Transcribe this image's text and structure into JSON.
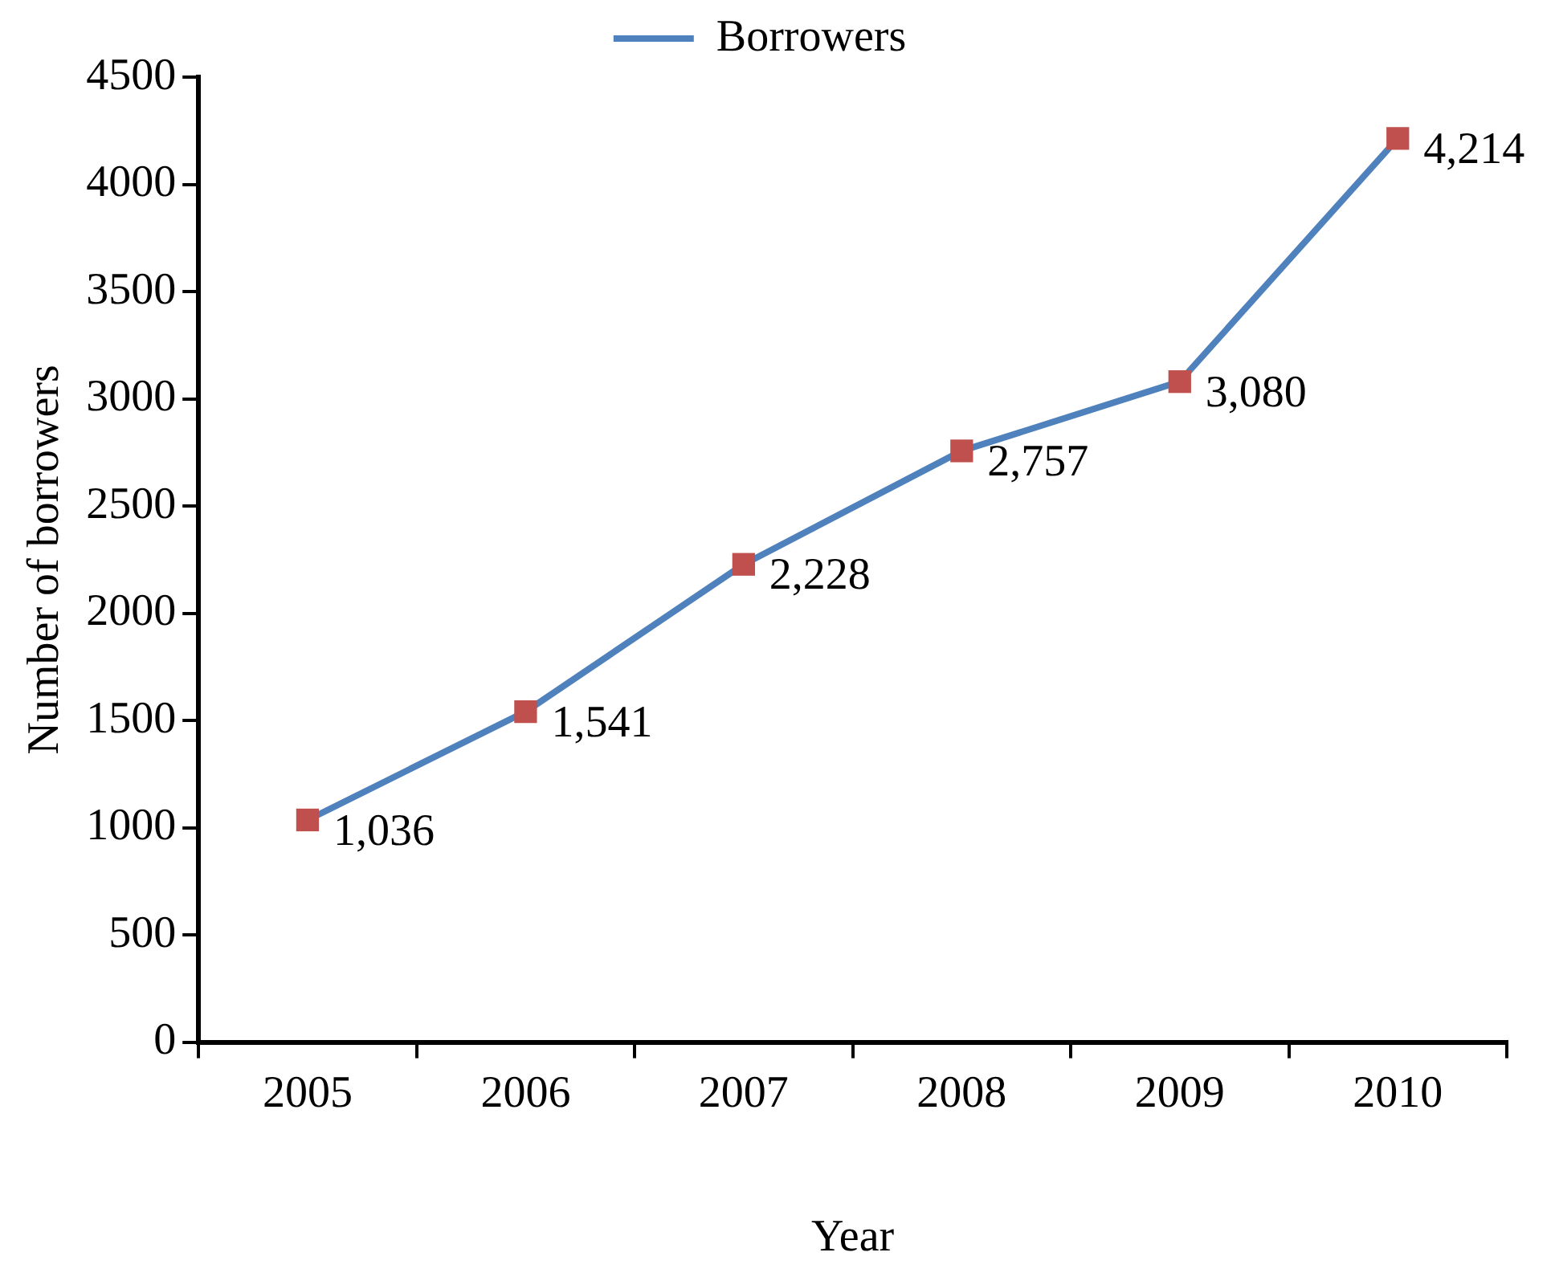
{
  "chart_data": {
    "type": "line",
    "xlabel": "Year",
    "ylabel": "Number of borrowers",
    "categories": [
      "2005",
      "2006",
      "2007",
      "2008",
      "2009",
      "2010"
    ],
    "series": [
      {
        "name": "Borrowers",
        "color": "#4f81bd",
        "colors": [
          "#c0504d",
          "#c0504d",
          "#c0504d",
          "#c0504d",
          "#c0504d",
          "#c0504d"
        ],
        "values": [
          1036,
          1541,
          2228,
          2757,
          3080,
          4214
        ],
        "value_labels": [
          "1,036",
          "1,541",
          "2,228",
          "2,757",
          "3,080",
          "4,214"
        ]
      }
    ],
    "ylim": [
      0,
      4500
    ],
    "yticks": [
      0,
      500,
      1000,
      1500,
      2000,
      2500,
      3000,
      3500,
      4000,
      4500
    ],
    "grid": false,
    "legend": "top",
    "marker": "square",
    "line_style": "solid"
  }
}
